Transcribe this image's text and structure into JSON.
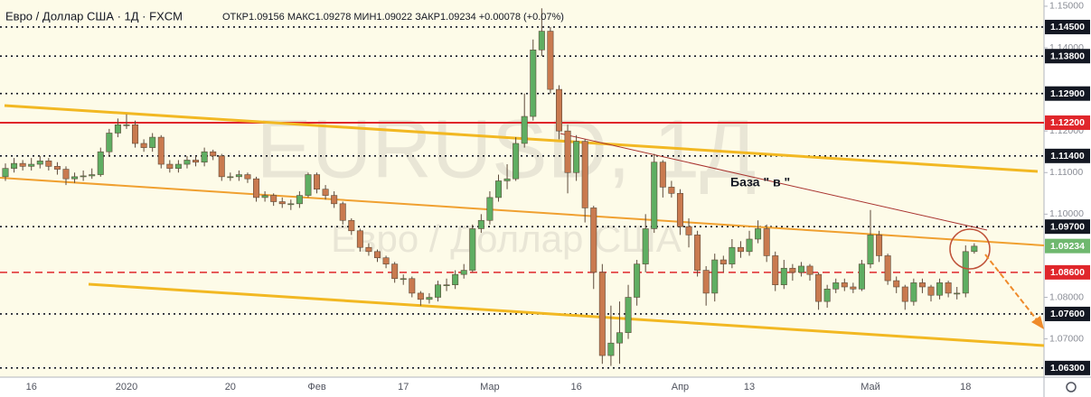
{
  "chart_data": {
    "type": "candlestick",
    "title": "Евро / Доллар США · 1Д · FXCM",
    "subtitle": "ОТКР1.09156 МАКС1.09278 МИН1.09022 ЗАКР1.09234 +0.00078 (+0.07%)",
    "watermark": "EURUSD, 1Д",
    "watermark_subtitle": "Евро / Доллар США",
    "annotations": [
      "База \" в \""
    ],
    "up_color": "#5fae62",
    "down_color": "#c97a4f",
    "ylim": [
      1.0608,
      1.1515
    ],
    "yticks": [
      {
        "value": 1.15,
        "label": "1.15000"
      },
      {
        "value": 1.14,
        "label": "1.14000"
      },
      {
        "value": 1.12,
        "label": "1.12000"
      },
      {
        "value": 1.11,
        "label": "1.11000"
      },
      {
        "value": 1.1,
        "label": "1.10000"
      },
      {
        "value": 1.08,
        "label": "1.08000"
      },
      {
        "value": 1.07,
        "label": "1.07000"
      }
    ],
    "levels": [
      {
        "value": 1.145,
        "label": "1.14500",
        "color": "#131722",
        "style": "dotted"
      },
      {
        "value": 1.138,
        "label": "1.13800",
        "color": "#131722",
        "style": "dotted"
      },
      {
        "value": 1.129,
        "label": "1.12900",
        "color": "#131722",
        "style": "dotted"
      },
      {
        "value": 1.122,
        "label": "1.12200",
        "color": "#e0262b",
        "style": "solid"
      },
      {
        "value": 1.114,
        "label": "1.11400",
        "color": "#131722",
        "style": "dotted"
      },
      {
        "value": 1.097,
        "label": "1.09700",
        "color": "#131722",
        "style": "dotted"
      },
      {
        "value": 1.09234,
        "label": "1.09234",
        "color": "#6fb86f",
        "style": "none"
      },
      {
        "value": 1.086,
        "label": "1.08600",
        "color": "#e0262b",
        "style": "dashed"
      },
      {
        "value": 1.076,
        "label": "1.07600",
        "color": "#131722",
        "style": "dotted"
      },
      {
        "value": 1.063,
        "label": "1.06300",
        "color": "#131722",
        "style": "dotted"
      }
    ],
    "categories": [
      null,
      null,
      null,
      "16",
      null,
      null,
      null,
      null,
      null,
      null,
      null,
      null,
      null,
      null,
      "2020",
      null,
      null,
      null,
      null,
      null,
      null,
      null,
      null,
      null,
      null,
      null,
      "20",
      null,
      null,
      null,
      null,
      null,
      null,
      null,
      null,
      null,
      "Фев",
      null,
      null,
      null,
      null,
      null,
      null,
      null,
      null,
      null,
      "17",
      null,
      null,
      null,
      null,
      null,
      null,
      null,
      null,
      null,
      "Мар",
      null,
      null,
      null,
      null,
      null,
      null,
      null,
      null,
      null,
      "16",
      null,
      null,
      null,
      null,
      null,
      null,
      null,
      null,
      null,
      null,
      null,
      "Апр",
      null,
      null,
      null,
      null,
      null,
      null,
      null,
      "13",
      null,
      null,
      null,
      null,
      null,
      null,
      null,
      null,
      null,
      null,
      null,
      null,
      null,
      "Май",
      null,
      null,
      null,
      null,
      null,
      null,
      null,
      null,
      null,
      null,
      "18",
      null
    ],
    "open": [
      1.109,
      1.111,
      1.1122,
      1.1115,
      1.112,
      1.1128,
      1.1115,
      1.1108,
      1.1085,
      1.109,
      1.1092,
      1.1095,
      1.115,
      1.1195,
      1.1215,
      1.1215,
      1.117,
      1.116,
      1.1185,
      1.112,
      1.111,
      1.112,
      1.113,
      1.1125,
      1.115,
      1.114,
      1.109,
      1.109,
      1.1095,
      1.1085,
      1.104,
      1.1045,
      1.103,
      1.1025,
      1.1025,
      1.1045,
      1.1095,
      1.106,
      1.1045,
      1.1025,
      1.0985,
      1.096,
      1.092,
      1.091,
      1.0895,
      1.088,
      1.0845,
      1.0845,
      1.081,
      1.0795,
      1.08,
      1.083,
      1.083,
      1.0855,
      1.0865,
      1.0965,
      1.0985,
      1.104,
      1.108,
      1.1085,
      1.117,
      1.1235,
      1.1395,
      1.144,
      1.13,
      1.12,
      1.11,
      1.1175,
      1.1015,
      1.086,
      1.066,
      1.069,
      1.0715,
      1.08,
      1.088,
      1.0965,
      1.1125,
      1.1065,
      1.105,
      1.097,
      1.095,
      1.0865,
      1.081,
      1.089,
      1.088,
      1.092,
      1.091,
      1.094,
      1.0965,
      1.09,
      1.083,
      1.087,
      1.086,
      1.0875,
      1.0855,
      1.079,
      1.082,
      1.0835,
      1.0825,
      1.082,
      1.088,
      1.095,
      1.09,
      1.084,
      1.0825,
      1.079,
      1.0835,
      1.0825,
      1.0805,
      1.0835,
      1.081,
      1.081,
      1.091
    ],
    "high": [
      1.1122,
      1.1135,
      1.113,
      1.1135,
      1.114,
      1.1135,
      1.1125,
      1.1115,
      1.11,
      1.1105,
      1.111,
      1.116,
      1.1205,
      1.123,
      1.124,
      1.1225,
      1.118,
      1.1195,
      1.119,
      1.113,
      1.113,
      1.114,
      1.114,
      1.116,
      1.1155,
      1.1145,
      1.11,
      1.1105,
      1.11,
      1.109,
      1.1055,
      1.105,
      1.104,
      1.1035,
      1.1055,
      1.11,
      1.11,
      1.107,
      1.1055,
      1.103,
      1.099,
      1.0965,
      1.093,
      1.0915,
      1.09,
      1.0885,
      1.0855,
      1.085,
      1.0815,
      1.081,
      1.084,
      1.0845,
      1.0865,
      1.088,
      1.0975,
      1.1,
      1.1055,
      1.1095,
      1.112,
      1.1185,
      1.129,
      1.142,
      1.1495,
      1.145,
      1.131,
      1.1215,
      1.119,
      1.118,
      1.102,
      1.088,
      1.078,
      1.079,
      1.083,
      1.089,
      1.1,
      1.1145,
      1.113,
      1.108,
      1.106,
      1.099,
      1.096,
      1.0875,
      1.0905,
      1.09,
      1.094,
      1.0935,
      1.096,
      1.0985,
      1.0975,
      1.091,
      1.089,
      1.088,
      1.0885,
      1.088,
      1.086,
      1.083,
      1.0845,
      1.0845,
      1.0835,
      1.089,
      1.101,
      1.096,
      1.0905,
      1.085,
      1.083,
      1.0845,
      1.0845,
      1.083,
      1.0845,
      1.084,
      1.0825,
      1.0925,
      1.093
    ],
    "low": [
      1.108,
      1.11,
      1.1105,
      1.1105,
      1.111,
      1.1105,
      1.1095,
      1.107,
      1.1075,
      1.108,
      1.1085,
      1.109,
      1.114,
      1.1185,
      1.1205,
      1.116,
      1.115,
      1.115,
      1.111,
      1.11,
      1.11,
      1.111,
      1.1115,
      1.1115,
      1.113,
      1.108,
      1.108,
      1.108,
      1.1075,
      1.103,
      1.103,
      1.102,
      1.1015,
      1.101,
      1.1015,
      1.104,
      1.105,
      1.1035,
      1.1015,
      1.0975,
      1.095,
      1.091,
      1.09,
      1.0885,
      1.087,
      1.0835,
      1.083,
      1.08,
      1.078,
      1.0785,
      1.079,
      1.0815,
      1.082,
      1.0845,
      1.086,
      1.0955,
      1.0975,
      1.103,
      1.106,
      1.108,
      1.116,
      1.1225,
      1.138,
      1.129,
      1.118,
      1.105,
      1.108,
      1.098,
      1.082,
      1.064,
      1.0635,
      1.064,
      1.07,
      1.078,
      1.086,
      1.0955,
      1.104,
      1.104,
      1.095,
      1.092,
      1.085,
      1.078,
      1.079,
      1.086,
      1.087,
      1.0895,
      1.09,
      1.093,
      1.0885,
      1.0815,
      1.082,
      1.084,
      1.085,
      1.084,
      1.077,
      1.0775,
      1.081,
      1.0815,
      1.081,
      1.0815,
      1.087,
      1.0885,
      1.083,
      1.081,
      1.077,
      1.078,
      1.081,
      1.079,
      1.0795,
      1.08,
      1.0795,
      1.08,
      1.0905
    ],
    "close": [
      1.111,
      1.1122,
      1.1115,
      1.112,
      1.1128,
      1.1115,
      1.1108,
      1.1085,
      1.109,
      1.1092,
      1.1095,
      1.115,
      1.1195,
      1.1215,
      1.1215,
      1.117,
      1.116,
      1.1185,
      1.112,
      1.111,
      1.112,
      1.113,
      1.1125,
      1.115,
      1.114,
      1.109,
      1.109,
      1.1095,
      1.1085,
      1.104,
      1.1045,
      1.103,
      1.1025,
      1.1025,
      1.1045,
      1.1095,
      1.106,
      1.1045,
      1.1025,
      1.0985,
      1.096,
      1.092,
      1.091,
      1.0895,
      1.088,
      1.0845,
      1.0845,
      1.081,
      1.0795,
      1.08,
      1.083,
      1.083,
      1.0855,
      1.0865,
      1.0965,
      1.0985,
      1.104,
      1.108,
      1.1085,
      1.117,
      1.1235,
      1.1395,
      1.144,
      1.13,
      1.12,
      1.11,
      1.1175,
      1.1015,
      1.086,
      1.066,
      1.069,
      1.0715,
      1.08,
      1.088,
      1.0965,
      1.1125,
      1.1065,
      1.105,
      1.097,
      1.095,
      1.0865,
      1.081,
      1.089,
      1.088,
      1.092,
      1.091,
      1.094,
      1.0965,
      1.09,
      1.083,
      1.087,
      1.086,
      1.0875,
      1.0855,
      1.079,
      1.082,
      1.0835,
      1.0825,
      1.082,
      1.088,
      1.095,
      1.09,
      1.084,
      1.0825,
      1.079,
      1.0835,
      1.0825,
      1.0805,
      1.0835,
      1.081,
      1.081,
      1.091,
      1.0923
    ]
  }
}
